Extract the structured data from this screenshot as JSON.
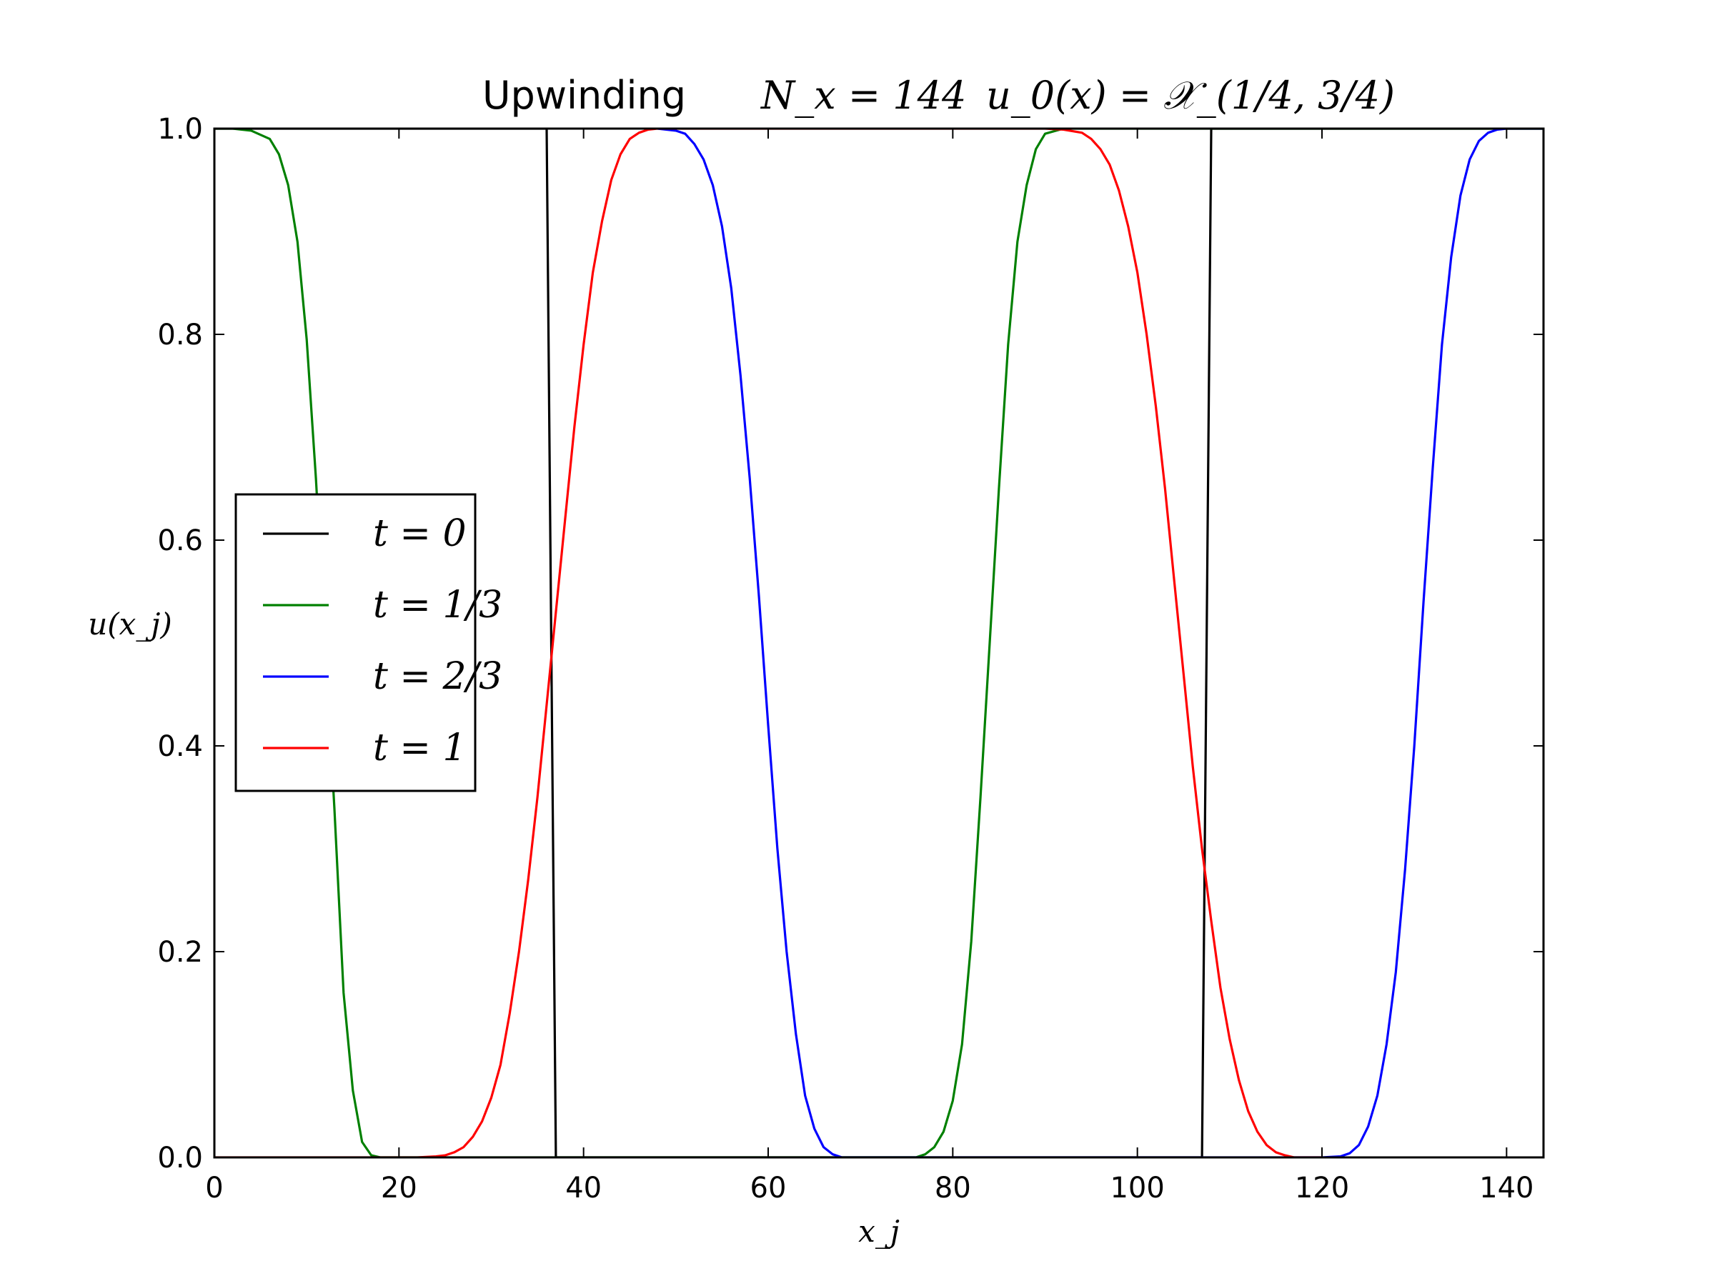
{
  "chart_data": {
    "type": "line",
    "title": "Upwinding",
    "title_math": [
      "N_x = 144",
      "u_0(x) = 𝒳_(1/4, 3/4)"
    ],
    "xlabel": "x_j",
    "ylabel": "u(x_j)",
    "xlim": [
      0,
      144
    ],
    "ylim": [
      0,
      1.0
    ],
    "xticks": [
      0,
      20,
      40,
      60,
      80,
      100,
      120,
      140
    ],
    "yticks": [
      0.0,
      0.2,
      0.4,
      0.6,
      0.8,
      1.0
    ],
    "xtick_labels": [
      "0",
      "20",
      "40",
      "60",
      "80",
      "100",
      "120",
      "140"
    ],
    "ytick_labels": [
      "0.0",
      "0.2",
      "0.4",
      "0.6",
      "0.8",
      "1.0"
    ],
    "grid": false,
    "legend_position": "center-left",
    "series": [
      {
        "name": "t = 0",
        "color": "#000000",
        "x": [
          0,
          36,
          37,
          107,
          108,
          144
        ],
        "y": [
          1.0,
          1.0,
          0.0,
          0.0,
          1.0,
          1.0
        ]
      },
      {
        "name": "t = 1/3",
        "color": "#008000",
        "x": [
          0,
          2,
          4,
          6,
          7,
          8,
          9,
          10,
          11,
          12,
          13,
          14,
          15,
          16,
          17,
          18,
          20,
          30,
          40,
          50,
          60,
          70,
          76,
          77,
          78,
          79,
          80,
          81,
          82,
          83,
          84,
          85,
          86,
          87,
          88,
          89,
          90,
          92,
          96,
          100,
          110,
          120,
          130,
          144
        ],
        "y": [
          1.0,
          1.0,
          0.998,
          0.99,
          0.975,
          0.945,
          0.89,
          0.795,
          0.66,
          0.5,
          0.34,
          0.16,
          0.065,
          0.015,
          0.002,
          0.0,
          0.0,
          0.0,
          0.0,
          0.0,
          0.0,
          0.0,
          0.0,
          0.003,
          0.01,
          0.025,
          0.055,
          0.11,
          0.21,
          0.35,
          0.5,
          0.65,
          0.79,
          0.89,
          0.945,
          0.98,
          0.995,
          1.0,
          1.0,
          1.0,
          1.0,
          1.0,
          1.0,
          1.0
        ]
      },
      {
        "name": "t = 2/3",
        "color": "#0000ff",
        "x": [
          48,
          50,
          51,
          52,
          53,
          54,
          55,
          56,
          57,
          58,
          59,
          60,
          61,
          62,
          63,
          64,
          65,
          66,
          67,
          68,
          70,
          80,
          90,
          100,
          110,
          120,
          122,
          123,
          124,
          125,
          126,
          127,
          128,
          129,
          130,
          131,
          132,
          133,
          134,
          135,
          136,
          137,
          138,
          139,
          140,
          142,
          144
        ],
        "y": [
          1.0,
          0.998,
          0.995,
          0.985,
          0.97,
          0.945,
          0.905,
          0.845,
          0.76,
          0.66,
          0.545,
          0.42,
          0.3,
          0.2,
          0.12,
          0.06,
          0.028,
          0.01,
          0.003,
          0.0,
          0.0,
          0.0,
          0.0,
          0.0,
          0.0,
          0.0,
          0.001,
          0.004,
          0.012,
          0.03,
          0.06,
          0.11,
          0.18,
          0.28,
          0.4,
          0.54,
          0.67,
          0.79,
          0.875,
          0.935,
          0.97,
          0.988,
          0.996,
          0.999,
          1.0,
          1.0,
          1.0
        ]
      },
      {
        "name": "t = 1",
        "color": "#ff0000",
        "x": [
          0,
          10,
          20,
          22,
          24,
          25,
          26,
          27,
          28,
          29,
          30,
          31,
          32,
          33,
          34,
          35,
          36,
          37,
          38,
          39,
          40,
          41,
          42,
          43,
          44,
          45,
          46,
          47,
          48,
          90,
          92,
          94,
          95,
          96,
          97,
          98,
          99,
          100,
          101,
          102,
          103,
          104,
          105,
          106,
          107,
          108,
          109,
          110,
          111,
          112,
          113,
          114,
          115,
          116,
          117,
          118,
          120
        ],
        "y": [
          0.0,
          0.0,
          0.0,
          0.0,
          0.001,
          0.002,
          0.005,
          0.01,
          0.02,
          0.035,
          0.058,
          0.09,
          0.14,
          0.2,
          0.27,
          0.35,
          0.44,
          0.53,
          0.62,
          0.71,
          0.79,
          0.86,
          0.91,
          0.95,
          0.975,
          0.99,
          0.996,
          0.999,
          1.0,
          1.0,
          0.999,
          0.996,
          0.99,
          0.98,
          0.965,
          0.94,
          0.905,
          0.86,
          0.8,
          0.73,
          0.65,
          0.56,
          0.47,
          0.38,
          0.3,
          0.23,
          0.165,
          0.115,
          0.075,
          0.045,
          0.025,
          0.012,
          0.005,
          0.002,
          0.0,
          0.0,
          0.0
        ]
      }
    ]
  }
}
